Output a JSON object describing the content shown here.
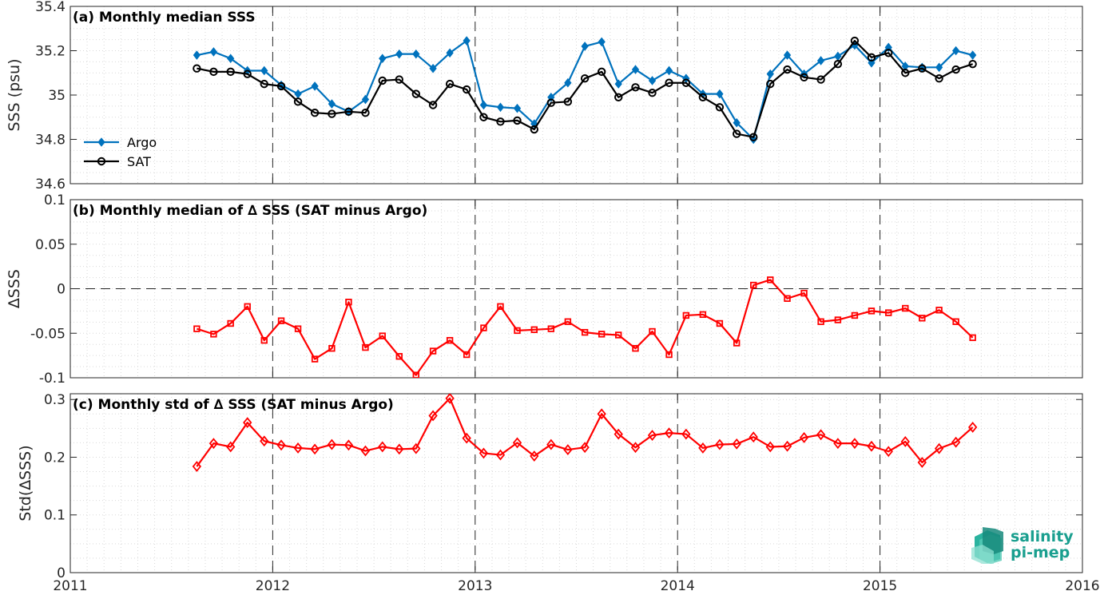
{
  "chart_data": [
    {
      "type": "line",
      "title": "(a) Monthly median SSS",
      "ylabel": "SSS (psu)",
      "xlim": [
        2011,
        2016
      ],
      "ylim": [
        34.6,
        35.4
      ],
      "yticks": [
        34.6,
        34.8,
        35,
        35.2,
        35.4
      ],
      "ytick_labels": [
        "34.6",
        "34.8",
        "35",
        "35.2",
        "35.4"
      ],
      "grid": true,
      "legend": "left",
      "x": [
        2011.625,
        2011.708,
        2011.792,
        2011.875,
        2011.958,
        2012.042,
        2012.125,
        2012.208,
        2012.292,
        2012.375,
        2012.458,
        2012.542,
        2012.625,
        2012.708,
        2012.792,
        2012.875,
        2012.958,
        2013.042,
        2013.125,
        2013.208,
        2013.292,
        2013.375,
        2013.458,
        2013.542,
        2013.625,
        2013.708,
        2013.792,
        2013.875,
        2013.958,
        2014.042,
        2014.125,
        2014.208,
        2014.292,
        2014.375,
        2014.458,
        2014.542,
        2014.625,
        2014.708,
        2014.792,
        2014.875,
        2014.958,
        2015.042,
        2015.125,
        2015.208,
        2015.292,
        2015.375,
        2015.458
      ],
      "series": [
        {
          "name": "Argo",
          "color": "#0072bd",
          "marker": "filled-diamond",
          "values": [
            35.18,
            35.195,
            35.165,
            35.11,
            35.11,
            35.045,
            35.005,
            35.04,
            34.96,
            34.925,
            34.98,
            35.165,
            35.185,
            35.185,
            35.12,
            35.19,
            35.245,
            34.955,
            34.945,
            34.94,
            34.87,
            34.99,
            35.055,
            35.22,
            35.24,
            35.05,
            35.115,
            35.065,
            35.11,
            35.075,
            35.005,
            35.005,
            34.875,
            34.8,
            35.095,
            35.18,
            35.095,
            35.155,
            35.175,
            35.225,
            35.145,
            35.215,
            35.13,
            35.125,
            35.125,
            35.2,
            35.18
          ]
        },
        {
          "name": "SAT",
          "color": "#000000",
          "marker": "open-circle",
          "values": [
            35.12,
            35.105,
            35.105,
            35.095,
            35.05,
            35.04,
            34.97,
            34.92,
            34.915,
            34.925,
            34.92,
            35.065,
            35.07,
            35.005,
            34.955,
            35.05,
            35.025,
            34.9,
            34.88,
            34.885,
            34.845,
            34.965,
            34.97,
            35.075,
            35.105,
            34.99,
            35.035,
            35.01,
            35.055,
            35.055,
            34.99,
            34.945,
            34.825,
            34.81,
            35.05,
            35.115,
            35.08,
            35.07,
            35.14,
            35.245,
            35.17,
            35.19,
            35.1,
            35.12,
            35.075,
            35.115,
            35.14
          ]
        }
      ]
    },
    {
      "type": "line",
      "title": "(b) Monthly median of ∆ SSS (SAT minus Argo)",
      "ylabel": "∆SSS",
      "xlim": [
        2011,
        2016
      ],
      "ylim": [
        -0.1,
        0.1
      ],
      "yticks": [
        -0.1,
        -0.05,
        0,
        0.05,
        0.1
      ],
      "ytick_labels": [
        "-0.1",
        "-0.05",
        "0",
        "0.05",
        "0.1"
      ],
      "grid": true,
      "reference_line": 0,
      "x": [
        2011.625,
        2011.708,
        2011.792,
        2011.875,
        2011.958,
        2012.042,
        2012.125,
        2012.208,
        2012.292,
        2012.375,
        2012.458,
        2012.542,
        2012.625,
        2012.708,
        2012.792,
        2012.875,
        2012.958,
        2013.042,
        2013.125,
        2013.208,
        2013.292,
        2013.375,
        2013.458,
        2013.542,
        2013.625,
        2013.708,
        2013.792,
        2013.875,
        2013.958,
        2014.042,
        2014.125,
        2014.208,
        2014.292,
        2014.375,
        2014.458,
        2014.542,
        2014.625,
        2014.708,
        2014.792,
        2014.875,
        2014.958,
        2015.042,
        2015.125,
        2015.208,
        2015.292,
        2015.375,
        2015.458
      ],
      "series": [
        {
          "color": "#ff0000",
          "marker": "open-square",
          "values": [
            -0.045,
            -0.051,
            -0.039,
            -0.02,
            -0.058,
            -0.036,
            -0.045,
            -0.079,
            -0.067,
            -0.015,
            -0.066,
            -0.053,
            -0.076,
            -0.097,
            -0.07,
            -0.058,
            -0.074,
            -0.044,
            -0.02,
            -0.047,
            -0.046,
            -0.045,
            -0.037,
            -0.049,
            -0.051,
            -0.052,
            -0.067,
            -0.048,
            -0.074,
            -0.03,
            -0.029,
            -0.039,
            -0.061,
            0.004,
            0.01,
            -0.011,
            -0.005,
            -0.037,
            -0.035,
            -0.03,
            -0.025,
            -0.027,
            -0.022,
            -0.033,
            -0.024,
            -0.037,
            -0.055
          ]
        }
      ]
    },
    {
      "type": "line",
      "title": "(c) Monthly std of ∆ SSS (SAT minus Argo)",
      "ylabel": "Std(∆SSS)",
      "xlim": [
        2011,
        2016
      ],
      "ylim": [
        0,
        0.31
      ],
      "yticks": [
        0,
        0.1,
        0.2,
        0.3
      ],
      "ytick_labels": [
        "0",
        "0.1",
        "0.2",
        "0.3"
      ],
      "xticks": [
        2011,
        2012,
        2013,
        2014,
        2015,
        2016
      ],
      "xtick_labels": [
        "2011",
        "2012",
        "2013",
        "2014",
        "2015",
        "2016"
      ],
      "grid": true,
      "x": [
        2011.625,
        2011.708,
        2011.792,
        2011.875,
        2011.958,
        2012.042,
        2012.125,
        2012.208,
        2012.292,
        2012.375,
        2012.458,
        2012.542,
        2012.625,
        2012.708,
        2012.792,
        2012.875,
        2012.958,
        2013.042,
        2013.125,
        2013.208,
        2013.292,
        2013.375,
        2013.458,
        2013.542,
        2013.625,
        2013.708,
        2013.792,
        2013.875,
        2013.958,
        2014.042,
        2014.125,
        2014.208,
        2014.292,
        2014.375,
        2014.458,
        2014.542,
        2014.625,
        2014.708,
        2014.792,
        2014.875,
        2014.958,
        2015.042,
        2015.125,
        2015.208,
        2015.292,
        2015.375,
        2015.458
      ],
      "series": [
        {
          "color": "#ff0000",
          "marker": "open-diamond",
          "values": [
            0.184,
            0.224,
            0.218,
            0.26,
            0.228,
            0.221,
            0.216,
            0.214,
            0.222,
            0.221,
            0.211,
            0.218,
            0.214,
            0.215,
            0.272,
            0.302,
            0.233,
            0.207,
            0.204,
            0.225,
            0.202,
            0.222,
            0.213,
            0.217,
            0.275,
            0.24,
            0.217,
            0.238,
            0.242,
            0.24,
            0.216,
            0.222,
            0.223,
            0.235,
            0.218,
            0.219,
            0.234,
            0.239,
            0.224,
            0.224,
            0.219,
            0.21,
            0.227,
            0.191,
            0.215,
            0.226,
            0.252
          ]
        }
      ]
    }
  ],
  "logo": {
    "line1": "salinity",
    "line2": "pi-mep",
    "color": "#1a9f8f"
  }
}
